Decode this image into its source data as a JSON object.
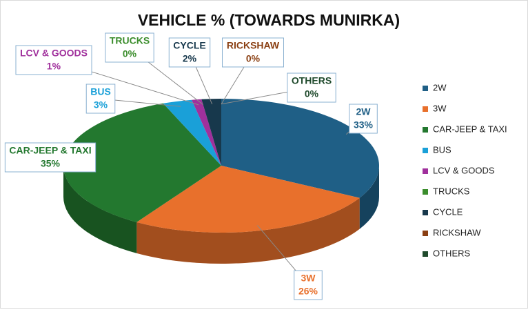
{
  "chart_data": {
    "type": "pie3d",
    "title": "VEHICLE % (TOWARDS MUNIRKA)",
    "categories": [
      "2W",
      "3W",
      "CAR-JEEP & TAXI",
      "BUS",
      "LCV & GOODS",
      "TRUCKS",
      "CYCLE",
      "RICKSHAW",
      "OTHERS"
    ],
    "values": [
      33,
      26,
      35,
      3,
      1,
      0,
      2,
      0,
      0
    ],
    "value_labels": [
      "33%",
      "26%",
      "35%",
      "3%",
      "1%",
      "0%",
      "2%",
      "0%",
      "0%"
    ],
    "colors": [
      "#1f5f86",
      "#e8702c",
      "#23782f",
      "#1aa0d8",
      "#a0309c",
      "#3b8d2c",
      "#17384c",
      "#8a3f12",
      "#1f4a2c"
    ],
    "legend": "right"
  }
}
